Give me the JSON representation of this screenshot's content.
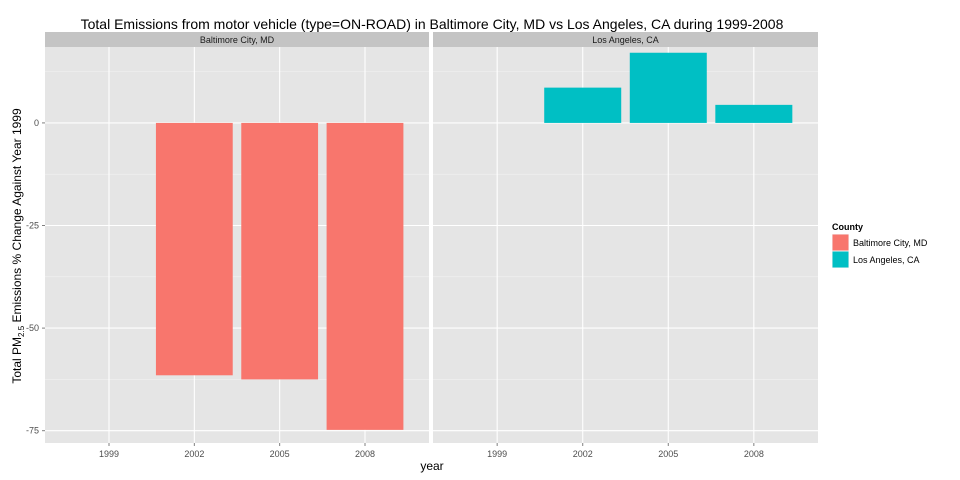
{
  "chart_data": {
    "type": "bar",
    "title": "Total Emissions from motor vehicle (type=ON-ROAD) in Baltimore City, MD vs Los Angeles, CA during 1999-2008",
    "xlabel": "year",
    "ylabel_parts": {
      "pre": "Total PM",
      "sub": "2.5",
      "post": " Emissions % Change Against Year 1999"
    },
    "categories": [
      "1999",
      "2002",
      "2005",
      "2008"
    ],
    "ylim": [
      -78,
      18.5
    ],
    "yticks": [
      -75,
      -50,
      -25,
      0
    ],
    "ytick_labels": [
      "-75",
      "-50",
      "-25",
      "0"
    ],
    "grid": true,
    "legend": {
      "title": "County",
      "position": "right"
    },
    "series": [
      {
        "name": "Baltimore City, MD",
        "color": "#F8766D",
        "values": [
          0,
          -61.5,
          -62.5,
          -74.8
        ]
      },
      {
        "name": "Los Angeles, CA",
        "color": "#00BFC4",
        "values": [
          0,
          8.6,
          17.1,
          4.4
        ]
      }
    ]
  }
}
